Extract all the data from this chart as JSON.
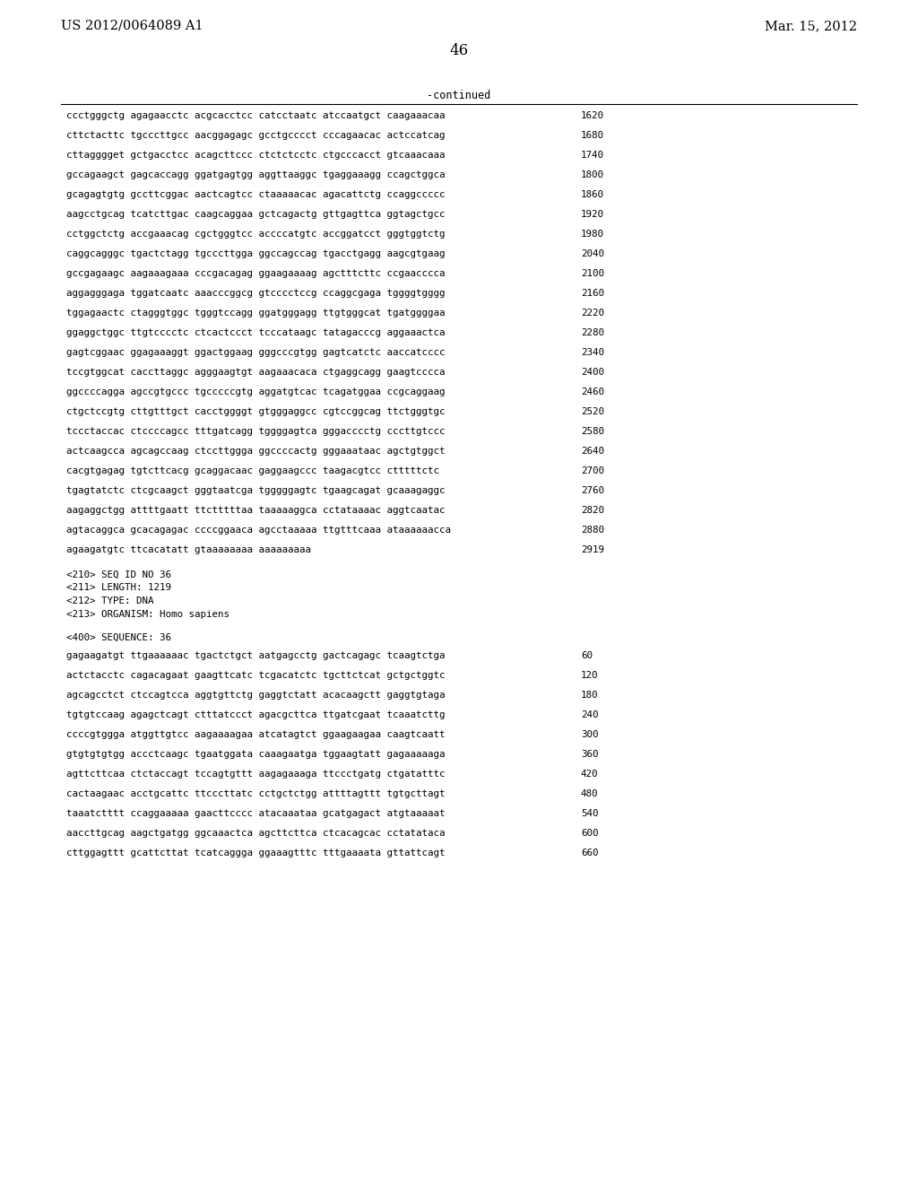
{
  "header_left": "US 2012/0064089 A1",
  "header_right": "Mar. 15, 2012",
  "page_number": "46",
  "continued_label": "-continued",
  "background_color": "#ffffff",
  "text_color": "#000000",
  "sequence_lines": [
    [
      "ccctgggctg agagaacctc acgcacctcc catcctaatc atccaatgct caagaaacaa",
      "1620"
    ],
    [
      "cttctacttc tgcccttgcc aacggagagc gcctgcccct cccagaacac actccatcag",
      "1680"
    ],
    [
      "cttagggget gctgacctcc acagcttccc ctctctcctc ctgcccacct gtcaaacaaa",
      "1740"
    ],
    [
      "gccagaagct gagcaccagg ggatgagtgg aggttaaggc tgaggaaagg ccagctggca",
      "1800"
    ],
    [
      "gcagagtgtg gccttcggac aactcagtcc ctaaaaacac agacattctg ccaggccccc",
      "1860"
    ],
    [
      "aagcctgcag tcatcttgac caagcaggaa gctcagactg gttgagttca ggtagctgcc",
      "1920"
    ],
    [
      "cctggctctg accgaaacag cgctgggtcc accccatgtc accggatcct gggtggtctg",
      "1980"
    ],
    [
      "caggcagggc tgactctagg tgcccttgga ggccagccag tgacctgagg aagcgtgaag",
      "2040"
    ],
    [
      "gccgagaagc aagaaagaaa cccgacagag ggaagaaaag agctttcttc ccgaacccca",
      "2100"
    ],
    [
      "aggagggaga tggatcaatc aaacccggcg gtcccctccg ccaggcgaga tggggtgggg",
      "2160"
    ],
    [
      "tggagaactc ctagggtggc tgggtccagg ggatgggagg ttgtgggcat tgatggggaa",
      "2220"
    ],
    [
      "ggaggctggc ttgtcccctc ctcactccct tcccataagc tatagacccg aggaaactca",
      "2280"
    ],
    [
      "gagtcggaac ggagaaaggt ggactggaag gggcccgtgg gagtcatctc aaccatcccc",
      "2340"
    ],
    [
      "tccgtggcat caccttaggc agggaagtgt aagaaacaca ctgaggcagg gaagtcccca",
      "2400"
    ],
    [
      "ggccccagga agccgtgccc tgcccccgtg aggatgtcac tcagatggaa ccgcaggaag",
      "2460"
    ],
    [
      "ctgctccgtg cttgtttgct cacctggggt gtgggaggcc cgtccggcag ttctgggtgc",
      "2520"
    ],
    [
      "tccctaccac ctccccagcc tttgatcagg tggggagtca gggacccctg cccttgtccc",
      "2580"
    ],
    [
      "actcaagcca agcagccaag ctccttggga ggccccactg gggaaataac agctgtggct",
      "2640"
    ],
    [
      "cacgtgagag tgtcttcacg gcaggacaac gaggaagccc taagacgtcc ctttttctc",
      "2700"
    ],
    [
      "tgagtatctc ctcgcaagct gggtaatcga tgggggagtc tgaagcagat gcaaagaggc",
      "2760"
    ],
    [
      "aagaggctgg attttgaatt ttctttttaa taaaaaggca cctataaaac aggtcaatac",
      "2820"
    ],
    [
      "agtacaggca gcacagagac ccccggaaca agcctaaaaa ttgtttcaaa ataaaaaacca",
      "2880"
    ],
    [
      "agaagatgtc ttcacatatt gtaaaaaaaa aaaaaaaaa",
      "2919"
    ]
  ],
  "metadata_lines": [
    "<210> SEQ ID NO 36",
    "<211> LENGTH: 1219",
    "<212> TYPE: DNA",
    "<213> ORGANISM: Homo sapiens"
  ],
  "sequence_label": "<400> SEQUENCE: 36",
  "sequence_lines2": [
    [
      "gagaagatgt ttgaaaaaac tgactctgct aatgagcctg gactcagagc tcaagtctga",
      "60"
    ],
    [
      "actctacctc cagacagaat gaagttcatc tcgacatctc tgcttctcat gctgctggtc",
      "120"
    ],
    [
      "agcagcctct ctccagtcca aggtgttctg gaggtctatt acacaagctt gaggtgtaga",
      "180"
    ],
    [
      "tgtgtccaag agagctcagt ctttatccct agacgcttca ttgatcgaat tcaaatcttg",
      "240"
    ],
    [
      "ccccgtggga atggttgtcc aagaaaagaa atcatagtct ggaagaagaa caagtcaatt",
      "300"
    ],
    [
      "gtgtgtgtgg accctcaagc tgaatggata caaagaatga tggaagtatt gagaaaaaga",
      "360"
    ],
    [
      "agttcttcaa ctctaccagt tccagtgttt aagagaaaga ttccctgatg ctgatatttc",
      "420"
    ],
    [
      "cactaagaac acctgcattc ttcccttatc cctgctctgg attttagttt tgtgcttagt",
      "480"
    ],
    [
      "taaatctttt ccaggaaaaa gaacttcccc atacaaataa gcatgagact atgtaaaaat",
      "540"
    ],
    [
      "aaccttgcag aagctgatgg ggcaaactca agcttcttca ctcacagcac cctatataca",
      "600"
    ],
    [
      "cttggagttt gcattcttat tcatcaggga ggaaagtttc tttgaaaata gttattcagt",
      "660"
    ]
  ]
}
